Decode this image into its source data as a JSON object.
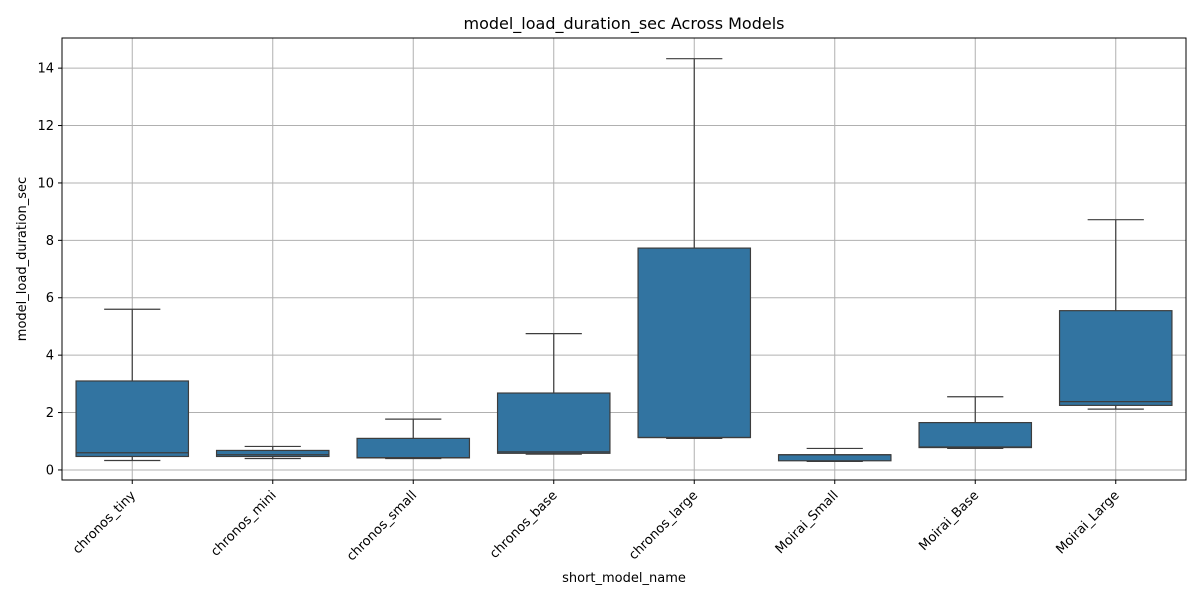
{
  "chart_data": {
    "type": "box",
    "title": "model_load_duration_sec Across Models",
    "xlabel": "short_model_name",
    "ylabel": "model_load_duration_sec",
    "ylim": [
      -0.35,
      15.05
    ],
    "yticks": [
      0,
      2,
      4,
      6,
      8,
      10,
      12,
      14
    ],
    "grid": true,
    "colors": {
      "box": "#3274a1",
      "line": "#3d3d3d",
      "grid": "#b0b0b0"
    },
    "categories": [
      "chronos_tiny",
      "chronos_mini",
      "chronos_small",
      "chronos_base",
      "chronos_large",
      "Moirai_Small",
      "Moirai_Base",
      "Moirai_Large"
    ],
    "boxes": [
      {
        "whisker_low": 0.33,
        "q1": 0.47,
        "median": 0.6,
        "q3": 3.1,
        "whisker_high": 5.6
      },
      {
        "whisker_low": 0.4,
        "q1": 0.47,
        "median": 0.53,
        "q3": 0.68,
        "whisker_high": 0.82
      },
      {
        "whisker_low": 0.4,
        "q1": 0.42,
        "median": 0.43,
        "q3": 1.1,
        "whisker_high": 1.77
      },
      {
        "whisker_low": 0.55,
        "q1": 0.58,
        "median": 0.63,
        "q3": 2.68,
        "whisker_high": 4.75
      },
      {
        "whisker_low": 1.1,
        "q1": 1.13,
        "median": 1.13,
        "q3": 7.73,
        "whisker_high": 14.33
      },
      {
        "whisker_low": 0.3,
        "q1": 0.32,
        "median": 0.53,
        "q3": 0.53,
        "whisker_high": 0.75
      },
      {
        "whisker_low": 0.75,
        "q1": 0.78,
        "median": 0.8,
        "q3": 1.65,
        "whisker_high": 2.55
      },
      {
        "whisker_low": 2.12,
        "q1": 2.25,
        "median": 2.38,
        "q3": 5.55,
        "whisker_high": 8.72
      }
    ]
  }
}
